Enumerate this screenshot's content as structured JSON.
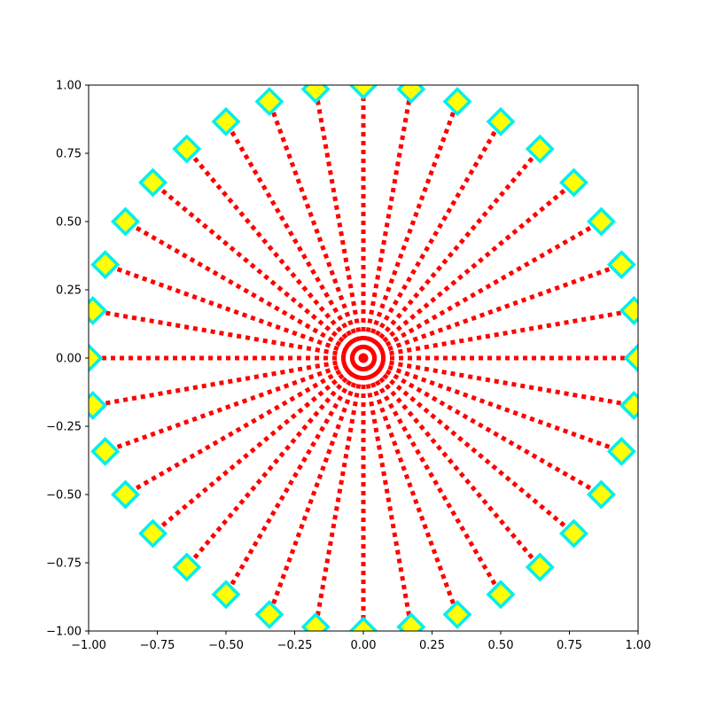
{
  "chart_data": {
    "type": "line",
    "title": "",
    "xlabel": "",
    "ylabel": "",
    "xlim": [
      -1.0,
      1.0
    ],
    "ylim": [
      -1.0,
      1.0
    ],
    "grid": false,
    "legend": "none",
    "xticks": [
      "−1.00",
      "−0.75",
      "−0.50",
      "−0.25",
      "0.00",
      "0.25",
      "0.50",
      "0.75",
      "1.00"
    ],
    "xtick_values": [
      -1.0,
      -0.75,
      -0.5,
      -0.25,
      0.0,
      0.25,
      0.5,
      0.75,
      1.0
    ],
    "yticks": [
      "−1.00",
      "−0.75",
      "−0.50",
      "−0.25",
      "0.00",
      "0.25",
      "0.50",
      "0.75",
      "1.00"
    ],
    "ytick_values": [
      -1.0,
      -0.75,
      -0.5,
      -0.25,
      0.0,
      0.25,
      0.5,
      0.75,
      1.0
    ],
    "rays": {
      "count": 36,
      "start_angle_deg": 0,
      "step_angle_deg": 10,
      "inner_radius": 0.0,
      "outer_radius": 1.0,
      "line_color": "#ff0000",
      "line_style": "dotted",
      "end_marker": "diamond",
      "marker_face_color": "#ffff00",
      "marker_edge_color": "#00eeee"
    }
  }
}
